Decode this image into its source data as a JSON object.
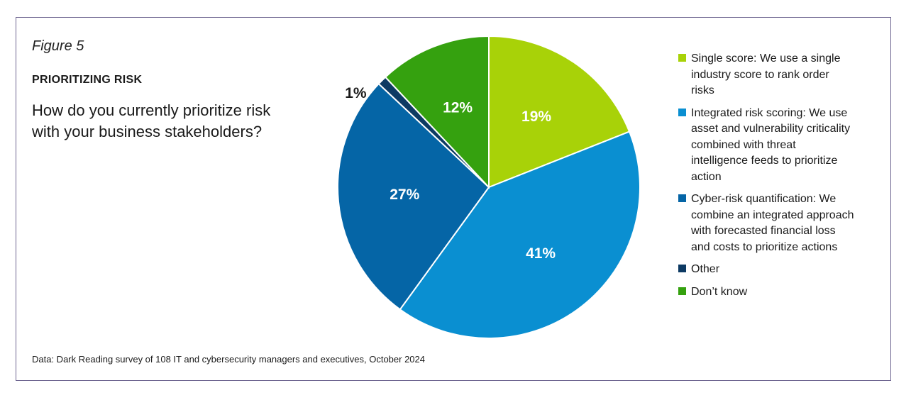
{
  "figure_label": "Figure 5",
  "kicker": "PRIORITIZING RISK",
  "question": "How do you currently prioritize risk with your business stakeholders?",
  "source": "Data: Dark Reading survey of 108 IT and cybersecurity managers and executives, October 2024",
  "chart_data": {
    "type": "pie",
    "title": "How do you currently prioritize risk with your business stakeholders?",
    "legend_position": "right",
    "slices": [
      {
        "label": "Single score: We use a single industry score to rank order risks",
        "value": 19,
        "display": "19%",
        "color": "#a8d208"
      },
      {
        "label": "Integrated risk scoring: We use asset and vulnerability criticality combined with threat intelligence feeds to prioritize action",
        "value": 41,
        "display": "41%",
        "color": "#0a8fd1"
      },
      {
        "label": "Cyber-risk quantification: We combine an integrated approach with forecasted financial loss and costs to prioritize actions",
        "value": 27,
        "display": "27%",
        "color": "#0565a6"
      },
      {
        "label": "Other",
        "value": 1,
        "display": "1%",
        "color": "#0d3a63"
      },
      {
        "label": "Don’t know",
        "value": 12,
        "display": "12%",
        "color": "#35a10f"
      }
    ]
  }
}
